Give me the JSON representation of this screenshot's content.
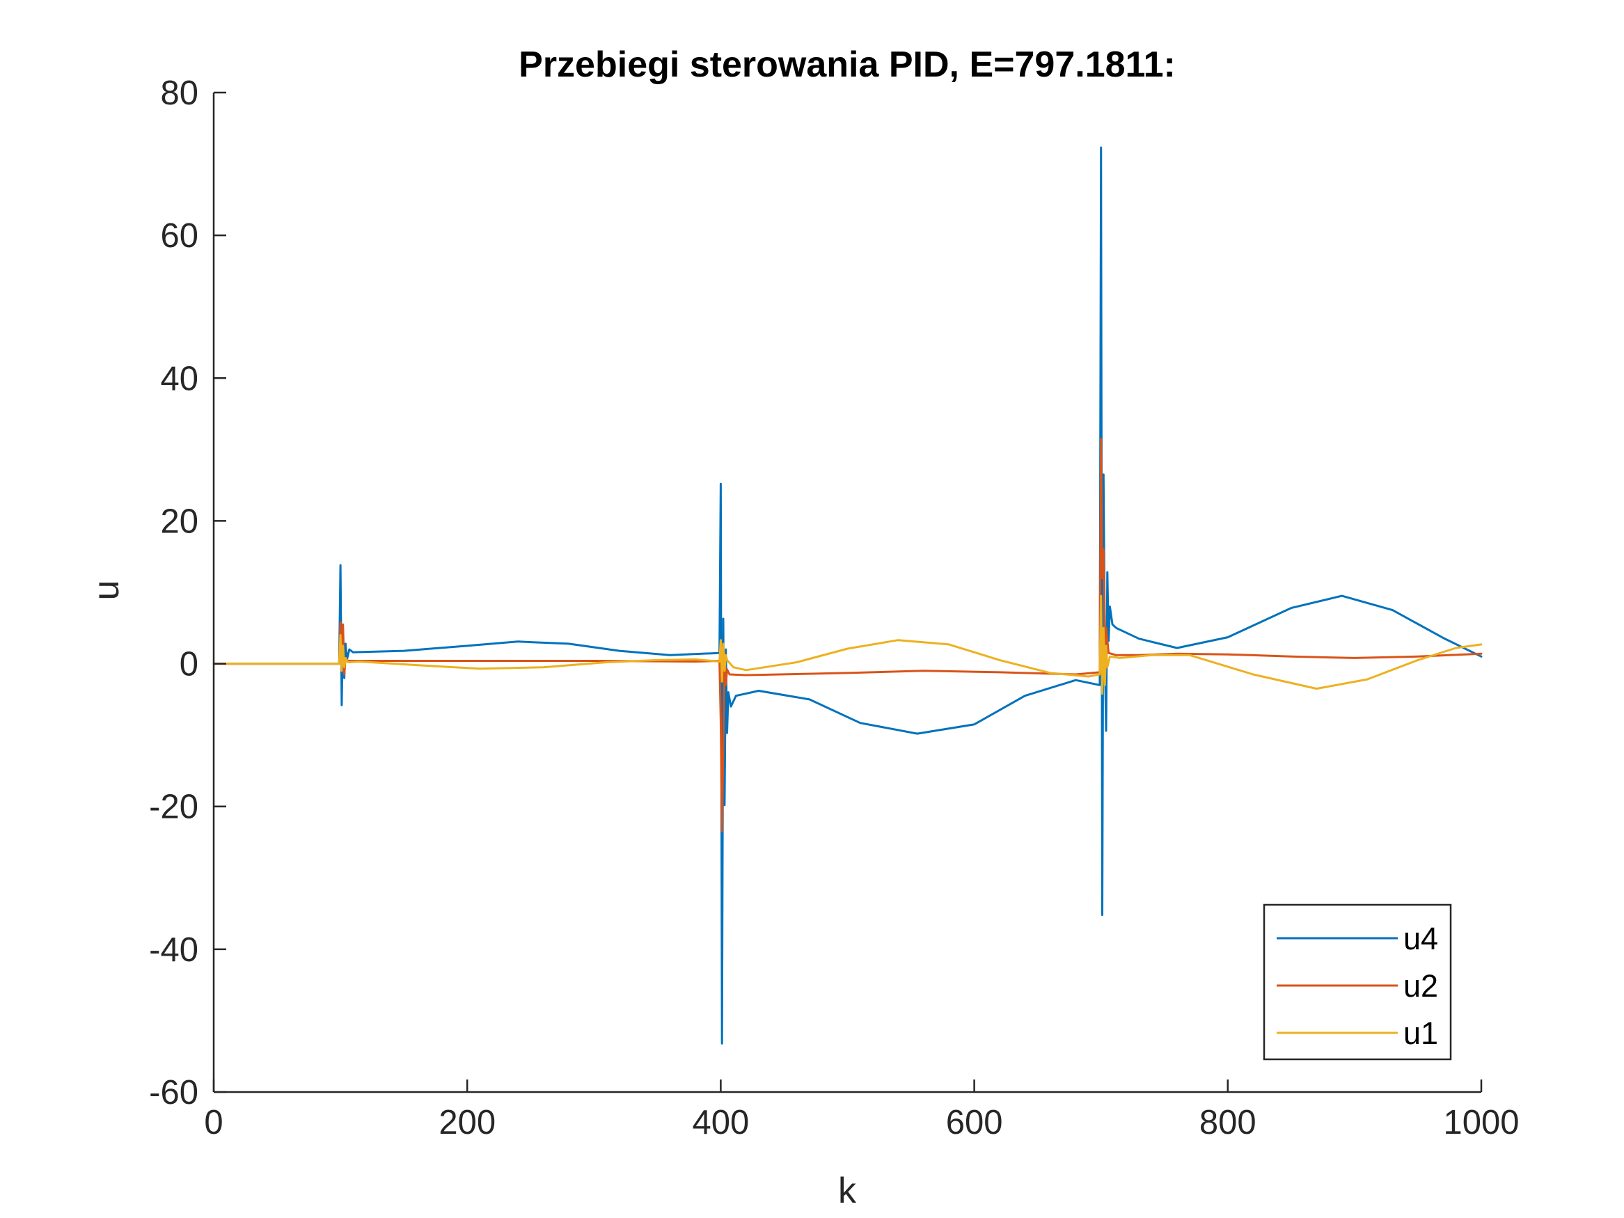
{
  "chart_data": {
    "type": "line",
    "title": "Przebiegi sterowania PID, E=797.1811:",
    "xlabel": "k",
    "ylabel": "u",
    "xlim": [
      0,
      1000
    ],
    "ylim": [
      -60,
      80
    ],
    "xticks": [
      0,
      200,
      400,
      600,
      800,
      1000
    ],
    "xtick_labels": [
      "0",
      "200",
      "400",
      "600",
      "800",
      "1000"
    ],
    "yticks": [
      -60,
      -40,
      -20,
      0,
      20,
      40,
      60,
      80
    ],
    "ytick_labels": [
      "-60",
      "-40",
      "-20",
      "0",
      "20",
      "40",
      "60",
      "80"
    ],
    "grid": false,
    "legend_position": "bottom-right",
    "series": [
      {
        "name": "u4",
        "color": "#0072BD",
        "points": [
          [
            0,
            0
          ],
          [
            99,
            0
          ],
          [
            100,
            13.8
          ],
          [
            101,
            -5.8
          ],
          [
            102,
            5
          ],
          [
            103,
            -2
          ],
          [
            104,
            2.8
          ],
          [
            105,
            0.5
          ],
          [
            107,
            2
          ],
          [
            110,
            1.6
          ],
          [
            150,
            1.8
          ],
          [
            200,
            2.5
          ],
          [
            240,
            3.1
          ],
          [
            280,
            2.8
          ],
          [
            320,
            1.8
          ],
          [
            360,
            1.2
          ],
          [
            399,
            1.5
          ],
          [
            400,
            25.2
          ],
          [
            401,
            -53.2
          ],
          [
            402,
            6.3
          ],
          [
            403,
            -19.8
          ],
          [
            404,
            2
          ],
          [
            405,
            -9.7
          ],
          [
            406,
            -4
          ],
          [
            408,
            -6
          ],
          [
            412,
            -4.5
          ],
          [
            430,
            -3.8
          ],
          [
            470,
            -5
          ],
          [
            510,
            -8.3
          ],
          [
            555,
            -9.8
          ],
          [
            600,
            -8.5
          ],
          [
            640,
            -4.5
          ],
          [
            680,
            -2.3
          ],
          [
            699,
            -3
          ],
          [
            700,
            72.3
          ],
          [
            701,
            -35.2
          ],
          [
            702,
            26.5
          ],
          [
            703,
            2
          ],
          [
            704,
            -9.4
          ],
          [
            705,
            12.8
          ],
          [
            706,
            3.2
          ],
          [
            707,
            8
          ],
          [
            709,
            5.5
          ],
          [
            712,
            5
          ],
          [
            730,
            3.5
          ],
          [
            760,
            2.2
          ],
          [
            800,
            3.7
          ],
          [
            850,
            7.8
          ],
          [
            890,
            9.5
          ],
          [
            930,
            7.5
          ],
          [
            970,
            3.6
          ],
          [
            1000,
            1
          ]
        ]
      },
      {
        "name": "u2",
        "color": "#D95319",
        "points": [
          [
            0,
            0
          ],
          [
            99,
            0
          ],
          [
            100,
            5.8
          ],
          [
            101,
            -1
          ],
          [
            102,
            5.5
          ],
          [
            103,
            -1.5
          ],
          [
            104,
            0.8
          ],
          [
            106,
            0.4
          ],
          [
            120,
            0.4
          ],
          [
            200,
            0.4
          ],
          [
            300,
            0.4
          ],
          [
            380,
            0.3
          ],
          [
            399,
            0.4
          ],
          [
            400,
            -8
          ],
          [
            401,
            -23.5
          ],
          [
            402,
            -12
          ],
          [
            403,
            1.5
          ],
          [
            404,
            -3
          ],
          [
            405,
            -0.8
          ],
          [
            407,
            -1.5
          ],
          [
            420,
            -1.6
          ],
          [
            500,
            -1.3
          ],
          [
            560,
            -1
          ],
          [
            620,
            -1.2
          ],
          [
            680,
            -1.5
          ],
          [
            699,
            -1.2
          ],
          [
            700,
            31.5
          ],
          [
            701,
            12
          ],
          [
            702,
            16
          ],
          [
            703,
            1.8
          ],
          [
            704,
            5
          ],
          [
            706,
            1.5
          ],
          [
            712,
            1.2
          ],
          [
            730,
            1.2
          ],
          [
            760,
            1.4
          ],
          [
            800,
            1.3
          ],
          [
            850,
            1
          ],
          [
            900,
            0.8
          ],
          [
            950,
            1
          ],
          [
            1000,
            1.4
          ]
        ]
      },
      {
        "name": "u1",
        "color": "#EDB120",
        "points": [
          [
            0,
            0
          ],
          [
            99,
            0
          ],
          [
            100,
            4
          ],
          [
            101,
            -1
          ],
          [
            102,
            2.5
          ],
          [
            103,
            -0.5
          ],
          [
            104,
            0.8
          ],
          [
            106,
            0.2
          ],
          [
            115,
            0.3
          ],
          [
            160,
            -0.2
          ],
          [
            210,
            -0.7
          ],
          [
            260,
            -0.5
          ],
          [
            310,
            0.2
          ],
          [
            350,
            0.5
          ],
          [
            380,
            0.6
          ],
          [
            399,
            0.3
          ],
          [
            400,
            3.3
          ],
          [
            401,
            -2.5
          ],
          [
            402,
            2.8
          ],
          [
            403,
            -1
          ],
          [
            404,
            1.2
          ],
          [
            405,
            0.5
          ],
          [
            410,
            -0.5
          ],
          [
            420,
            -0.9
          ],
          [
            460,
            0.2
          ],
          [
            500,
            2.1
          ],
          [
            540,
            3.3
          ],
          [
            580,
            2.7
          ],
          [
            620,
            0.5
          ],
          [
            660,
            -1.3
          ],
          [
            690,
            -1.8
          ],
          [
            699,
            -1.5
          ],
          [
            700,
            9.5
          ],
          [
            701,
            -4.2
          ],
          [
            702,
            5
          ],
          [
            703,
            -3
          ],
          [
            704,
            2.5
          ],
          [
            705,
            -0.5
          ],
          [
            707,
            1
          ],
          [
            715,
            0.8
          ],
          [
            740,
            1.2
          ],
          [
            770,
            1.2
          ],
          [
            820,
            -1.5
          ],
          [
            870,
            -3.5
          ],
          [
            910,
            -2.2
          ],
          [
            950,
            0.5
          ],
          [
            980,
            2.2
          ],
          [
            1000,
            2.7
          ]
        ]
      }
    ]
  }
}
